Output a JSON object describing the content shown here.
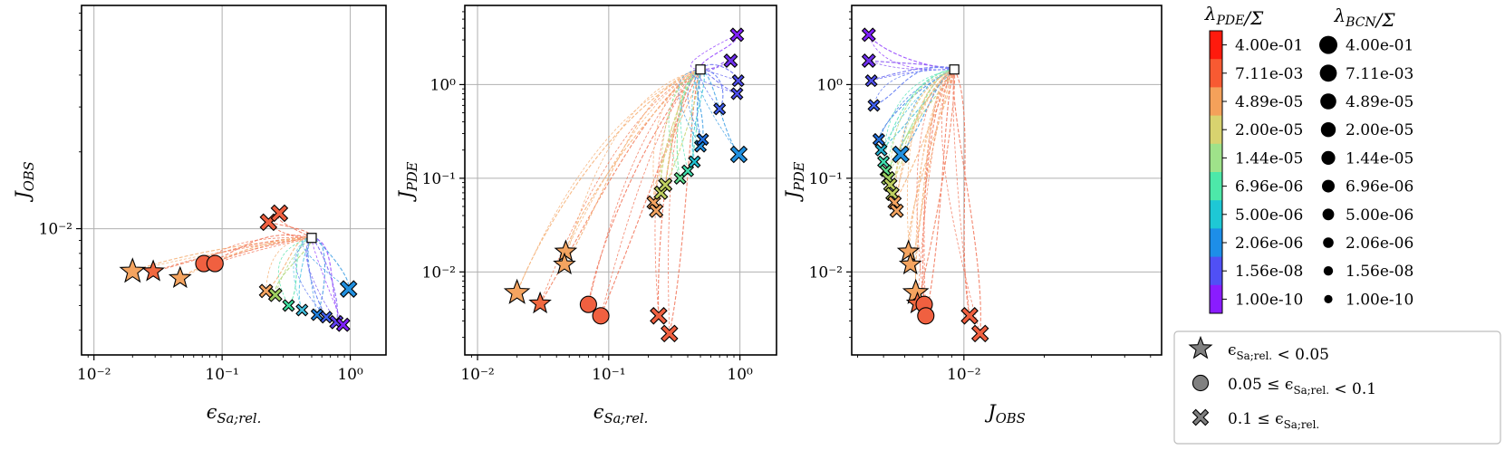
{
  "chart_data": [
    {
      "type": "scatter",
      "panel": "left",
      "xlabel": "ϵ_{Sa;rel.}",
      "ylabel": "J_OBS",
      "xscale": "log",
      "yscale": "log",
      "xlim": [
        0.008,
        1.9
      ],
      "ylim": [
        0.0032,
        0.075
      ],
      "xticks": [
        {
          "v": 0.01,
          "label": "10⁻²"
        },
        {
          "v": 0.1,
          "label": "10⁻¹"
        },
        {
          "v": 1,
          "label": "10⁰"
        }
      ],
      "yticks": [
        {
          "v": 0.01,
          "label": "10⁻²"
        }
      ],
      "grid": true,
      "start_marker": {
        "x": 0.5,
        "y": 0.0092
      },
      "markers": [
        {
          "x": 0.02,
          "y": 0.0068,
          "shape": "star",
          "color": "#f4a460",
          "size": 1
        },
        {
          "x": 0.029,
          "y": 0.0068,
          "shape": "star",
          "color": "#f06840",
          "size": 0.85
        },
        {
          "x": 0.047,
          "y": 0.0064,
          "shape": "star",
          "color": "#f4a460",
          "size": 0.85
        },
        {
          "x": 0.072,
          "y": 0.0073,
          "shape": "circle",
          "color": "#f06040",
          "size": 1
        },
        {
          "x": 0.088,
          "y": 0.0073,
          "shape": "circle",
          "color": "#f06040",
          "size": 1
        },
        {
          "x": 0.23,
          "y": 0.0106,
          "shape": "x",
          "color": "#f06040",
          "size": 1
        },
        {
          "x": 0.28,
          "y": 0.0115,
          "shape": "x",
          "color": "#f06040",
          "size": 1
        },
        {
          "x": 0.22,
          "y": 0.0057,
          "shape": "x",
          "color": "#f4a460",
          "size": 0.8
        },
        {
          "x": 0.26,
          "y": 0.0055,
          "shape": "x",
          "color": "#a0d060",
          "size": 0.8
        },
        {
          "x": 0.33,
          "y": 0.005,
          "shape": "x",
          "color": "#40e0a0",
          "size": 0.7
        },
        {
          "x": 0.42,
          "y": 0.0048,
          "shape": "x",
          "color": "#40c0e0",
          "size": 0.7
        },
        {
          "x": 0.55,
          "y": 0.0046,
          "shape": "x",
          "color": "#2080e0",
          "size": 0.7
        },
        {
          "x": 0.65,
          "y": 0.0045,
          "shape": "x",
          "color": "#4060f0",
          "size": 0.7
        },
        {
          "x": 0.78,
          "y": 0.0043,
          "shape": "x",
          "color": "#6040f0",
          "size": 0.8
        },
        {
          "x": 0.88,
          "y": 0.0042,
          "shape": "x",
          "color": "#8020ff",
          "size": 0.8
        },
        {
          "x": 0.97,
          "y": 0.0058,
          "shape": "x",
          "color": "#2090e0",
          "size": 1
        }
      ]
    },
    {
      "type": "scatter",
      "panel": "middle",
      "xlabel": "ϵ_{Sa;rel.}",
      "ylabel": "J_PDE",
      "xscale": "log",
      "yscale": "log",
      "xlim": [
        0.008,
        1.9
      ],
      "ylim": [
        0.0013,
        7
      ],
      "xticks": [
        {
          "v": 0.01,
          "label": "10⁻²"
        },
        {
          "v": 0.1,
          "label": "10⁻¹"
        },
        {
          "v": 1,
          "label": "10⁰"
        }
      ],
      "yticks": [
        {
          "v": 0.01,
          "label": "10⁻²"
        },
        {
          "v": 0.1,
          "label": "10⁻¹"
        },
        {
          "v": 1,
          "label": "10⁰"
        }
      ],
      "grid": true,
      "start_marker": {
        "x": 0.5,
        "y": 1.45
      },
      "markers": [
        {
          "x": 0.02,
          "y": 0.006,
          "shape": "star",
          "color": "#f4a460",
          "size": 1
        },
        {
          "x": 0.03,
          "y": 0.0046,
          "shape": "star",
          "color": "#f06840",
          "size": 0.85
        },
        {
          "x": 0.047,
          "y": 0.0165,
          "shape": "star",
          "color": "#f4a460",
          "size": 0.85
        },
        {
          "x": 0.046,
          "y": 0.012,
          "shape": "star",
          "color": "#f4a460",
          "size": 0.85
        },
        {
          "x": 0.07,
          "y": 0.0045,
          "shape": "circle",
          "color": "#f06040",
          "size": 1
        },
        {
          "x": 0.087,
          "y": 0.0034,
          "shape": "circle",
          "color": "#f06040",
          "size": 1
        },
        {
          "x": 0.24,
          "y": 0.0034,
          "shape": "x",
          "color": "#f06040",
          "size": 1
        },
        {
          "x": 0.29,
          "y": 0.0022,
          "shape": "x",
          "color": "#f06040",
          "size": 1
        },
        {
          "x": 0.22,
          "y": 0.055,
          "shape": "x",
          "color": "#f4a460",
          "size": 0.8
        },
        {
          "x": 0.23,
          "y": 0.045,
          "shape": "x",
          "color": "#f4a460",
          "size": 0.8
        },
        {
          "x": 0.25,
          "y": 0.07,
          "shape": "x",
          "color": "#c0d060",
          "size": 0.8
        },
        {
          "x": 0.27,
          "y": 0.085,
          "shape": "x",
          "color": "#c0d060",
          "size": 0.8
        },
        {
          "x": 0.35,
          "y": 0.1,
          "shape": "x",
          "color": "#60e090",
          "size": 0.7
        },
        {
          "x": 0.4,
          "y": 0.12,
          "shape": "x",
          "color": "#40e0b0",
          "size": 0.7
        },
        {
          "x": 0.45,
          "y": 0.15,
          "shape": "x",
          "color": "#20c0d0",
          "size": 0.7
        },
        {
          "x": 0.5,
          "y": 0.22,
          "shape": "x",
          "color": "#2090e0",
          "size": 0.7
        },
        {
          "x": 0.52,
          "y": 0.26,
          "shape": "x",
          "color": "#2070e0",
          "size": 0.7
        },
        {
          "x": 0.7,
          "y": 0.55,
          "shape": "x",
          "color": "#4060f0",
          "size": 0.7
        },
        {
          "x": 0.95,
          "y": 0.8,
          "shape": "x",
          "color": "#5050f0",
          "size": 0.7
        },
        {
          "x": 0.97,
          "y": 1.1,
          "shape": "x",
          "color": "#5050f0",
          "size": 0.7
        },
        {
          "x": 0.85,
          "y": 1.8,
          "shape": "x",
          "color": "#7030f0",
          "size": 0.8
        },
        {
          "x": 0.95,
          "y": 3.4,
          "shape": "x",
          "color": "#8020ff",
          "size": 0.8
        },
        {
          "x": 0.98,
          "y": 0.18,
          "shape": "x",
          "color": "#2090e0",
          "size": 1
        }
      ]
    },
    {
      "type": "scatter",
      "panel": "right",
      "xlabel": "J_OBS",
      "ylabel": "J_PDE",
      "xscale": "log",
      "yscale": "log",
      "xlim": [
        0.0038,
        0.055
      ],
      "ylim": [
        0.0013,
        7
      ],
      "xticks": [
        {
          "v": 0.01,
          "label": "10⁻²"
        }
      ],
      "yticks": [
        {
          "v": 0.01,
          "label": "10⁻²"
        },
        {
          "v": 0.1,
          "label": "10⁻¹"
        },
        {
          "v": 1,
          "label": "10⁰"
        }
      ],
      "grid": true,
      "start_marker": {
        "x": 0.0092,
        "y": 1.45
      },
      "markers": [
        {
          "x": 0.0044,
          "y": 3.4,
          "shape": "x",
          "color": "#8020ff",
          "size": 0.8
        },
        {
          "x": 0.0044,
          "y": 1.8,
          "shape": "x",
          "color": "#7030f0",
          "size": 0.8
        },
        {
          "x": 0.0045,
          "y": 1.1,
          "shape": "x",
          "color": "#5050f0",
          "size": 0.7
        },
        {
          "x": 0.0046,
          "y": 0.6,
          "shape": "x",
          "color": "#4060f0",
          "size": 0.7
        },
        {
          "x": 0.0048,
          "y": 0.26,
          "shape": "x",
          "color": "#2070e0",
          "size": 0.7
        },
        {
          "x": 0.0049,
          "y": 0.2,
          "shape": "x",
          "color": "#20b0d0",
          "size": 0.7
        },
        {
          "x": 0.005,
          "y": 0.15,
          "shape": "x",
          "color": "#40e0b0",
          "size": 0.7
        },
        {
          "x": 0.0051,
          "y": 0.12,
          "shape": "x",
          "color": "#60e090",
          "size": 0.7
        },
        {
          "x": 0.0052,
          "y": 0.1,
          "shape": "x",
          "color": "#a0d060",
          "size": 0.8
        },
        {
          "x": 0.0053,
          "y": 0.085,
          "shape": "x",
          "color": "#c0d060",
          "size": 0.8
        },
        {
          "x": 0.0054,
          "y": 0.068,
          "shape": "x",
          "color": "#c0d060",
          "size": 0.8
        },
        {
          "x": 0.0055,
          "y": 0.055,
          "shape": "x",
          "color": "#f4a460",
          "size": 0.8
        },
        {
          "x": 0.0056,
          "y": 0.045,
          "shape": "x",
          "color": "#f4a460",
          "size": 0.8
        },
        {
          "x": 0.0058,
          "y": 0.18,
          "shape": "x",
          "color": "#2090e0",
          "size": 1
        },
        {
          "x": 0.0062,
          "y": 0.0165,
          "shape": "star",
          "color": "#f4a460",
          "size": 0.85
        },
        {
          "x": 0.0063,
          "y": 0.012,
          "shape": "star",
          "color": "#f4a460",
          "size": 0.85
        },
        {
          "x": 0.0066,
          "y": 0.006,
          "shape": "star",
          "color": "#f4a460",
          "size": 1
        },
        {
          "x": 0.0067,
          "y": 0.0046,
          "shape": "star",
          "color": "#f06840",
          "size": 0.85
        },
        {
          "x": 0.0071,
          "y": 0.0045,
          "shape": "circle",
          "color": "#f06040",
          "size": 1
        },
        {
          "x": 0.0072,
          "y": 0.0034,
          "shape": "circle",
          "color": "#f06040",
          "size": 1
        },
        {
          "x": 0.0105,
          "y": 0.0034,
          "shape": "x",
          "color": "#f06040",
          "size": 1
        },
        {
          "x": 0.0115,
          "y": 0.0022,
          "shape": "x",
          "color": "#f06040",
          "size": 1
        }
      ]
    }
  ],
  "legend": {
    "colorbar_title": "λ_PDE/Σ",
    "size_title": "λ_BCN/Σ",
    "levels": [
      "4.00e-01",
      "7.11e-03",
      "4.89e-05",
      "2.00e-05",
      "1.44e-05",
      "6.96e-06",
      "5.00e-06",
      "2.06e-06",
      "1.56e-08",
      "1.00e-10"
    ],
    "colors": [
      "#ff1a0d",
      "#f85a32",
      "#f4a15a",
      "#d8d36f",
      "#9fe28a",
      "#4de8a9",
      "#1ec8d5",
      "#1d8ee8",
      "#5050f5",
      "#8a1cff"
    ],
    "shape_legend": [
      {
        "shape": "star",
        "label": "ϵ_{Sa;rel.} < 0.05"
      },
      {
        "shape": "circle",
        "label": "0.05 ≤ ϵ_{Sa;rel.} < 0.1"
      },
      {
        "shape": "x",
        "label": "0.1 ≤ ϵ_{Sa;rel.}"
      }
    ]
  }
}
